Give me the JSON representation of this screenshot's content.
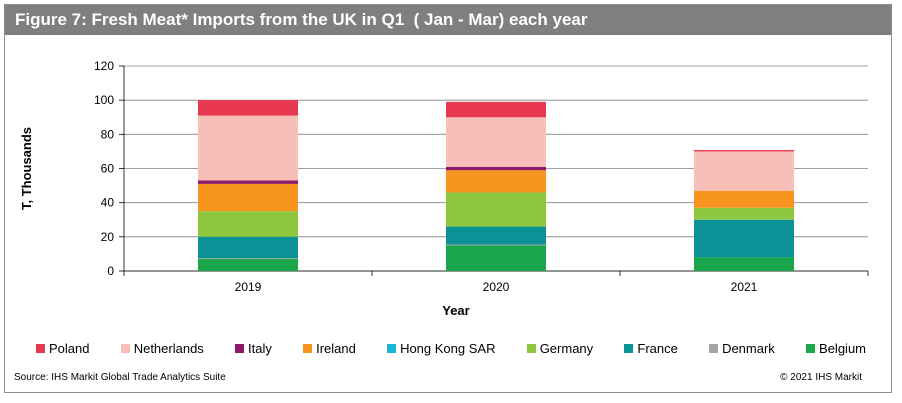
{
  "figure": {
    "title": "Figure 7: Fresh Meat* Imports from the UK in Q1  ( Jan - Mar) each year",
    "source": "Source: IHS Markit Global Trade Analytics Suite",
    "copyright": "© 2021 IHS Markit"
  },
  "chart_data": {
    "type": "bar",
    "stacked": true,
    "categories": [
      "2019",
      "2020",
      "2021"
    ],
    "xlabel": "Year",
    "ylabel": "T, Thousands",
    "ylim": [
      0,
      120
    ],
    "yticks": [
      0,
      20,
      40,
      60,
      80,
      100,
      120
    ],
    "grid": true,
    "legend_position": "bottom",
    "series": [
      {
        "name": "Belgium",
        "color": "#1aa64a",
        "values": [
          7,
          15,
          8
        ]
      },
      {
        "name": "Denmark",
        "color": "#a6a6a6",
        "values": [
          0.5,
          0.5,
          0
        ]
      },
      {
        "name": "France",
        "color": "#0a9396",
        "values": [
          12.5,
          10.5,
          22
        ]
      },
      {
        "name": "Hong Kong SAR",
        "color": "#1ab7d9",
        "values": [
          0,
          0,
          0
        ]
      },
      {
        "name": "Germany",
        "color": "#8dc63f",
        "values": [
          15,
          20,
          7
        ]
      },
      {
        "name": "Ireland",
        "color": "#f7941d",
        "values": [
          16,
          13,
          10
        ]
      },
      {
        "name": "Italy",
        "color": "#8b1a6b",
        "values": [
          2,
          2,
          0
        ]
      },
      {
        "name": "Netherlands",
        "color": "#f7bfb6",
        "values": [
          38,
          29,
          23
        ]
      },
      {
        "name": "Poland",
        "color": "#e8384f",
        "values": [
          9,
          9,
          0.8
        ]
      }
    ],
    "legend_order": [
      "Poland",
      "Netherlands",
      "Italy",
      "Ireland",
      "Hong Kong SAR",
      "Germany",
      "France",
      "Denmark",
      "Belgium"
    ]
  }
}
